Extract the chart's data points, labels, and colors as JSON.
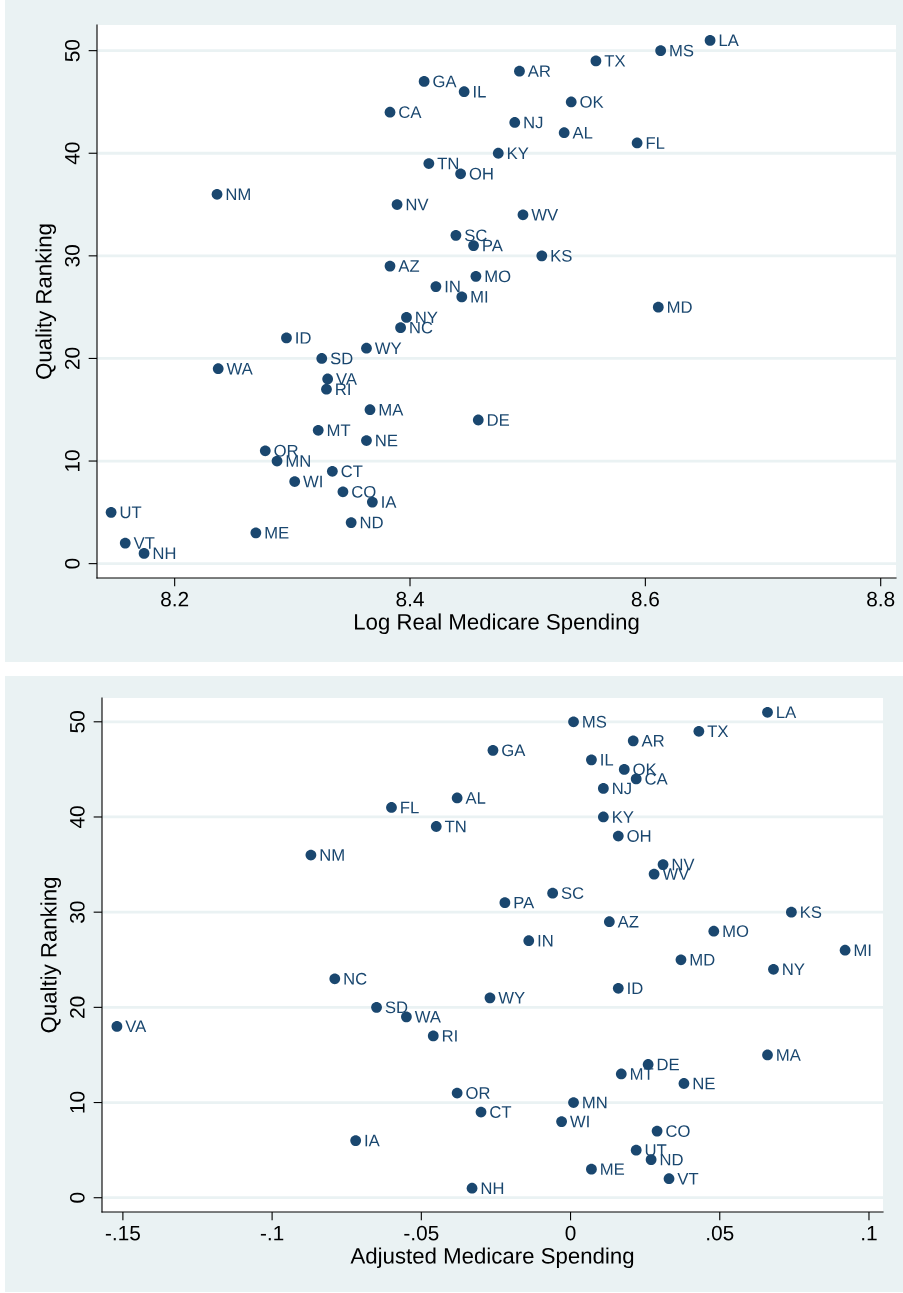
{
  "chart_data": [
    {
      "type": "scatter",
      "xlabel": "Log Real Medicare Spending",
      "ylabel": "Quality Ranking",
      "marker": "circle",
      "grid": "y",
      "xlim": [
        8.134,
        8.813
      ],
      "xticks": [
        8.2,
        8.4,
        8.6,
        8.8
      ],
      "ylim": [
        -1.4,
        52.5
      ],
      "yticks": [
        0,
        10,
        20,
        30,
        40,
        50
      ],
      "series": [
        {
          "color": "#1a476f",
          "x": [
            8.655,
            8.613,
            8.558,
            8.493,
            8.412,
            8.446,
            8.537,
            8.383,
            8.489,
            8.531,
            8.593,
            8.475,
            8.416,
            8.443,
            8.236,
            8.389,
            8.496,
            8.439,
            8.454,
            8.512,
            8.383,
            8.456,
            8.422,
            8.444,
            8.611,
            8.397,
            8.392,
            8.295,
            8.363,
            8.325,
            8.237,
            8.33,
            8.329,
            8.366,
            8.458,
            8.322,
            8.363,
            8.277,
            8.287,
            8.334,
            8.302,
            8.343,
            8.368,
            8.146,
            8.35,
            8.269,
            8.158,
            8.174
          ],
          "values": [
            51,
            50,
            49,
            48,
            47,
            46,
            45,
            44,
            43,
            42,
            41,
            40,
            39,
            38,
            36,
            35,
            34,
            32,
            31,
            30,
            29,
            28,
            27,
            26,
            25,
            24,
            23,
            22,
            21,
            20,
            19,
            18,
            17,
            15,
            14,
            13,
            12,
            11,
            10,
            9,
            8,
            7,
            6,
            5,
            4,
            3,
            2,
            1
          ]
        }
      ],
      "annotations": [
        {
          "text": "LA",
          "x": 8.655,
          "y": 51
        },
        {
          "text": "MS",
          "x": 8.613,
          "y": 50
        },
        {
          "text": "TX",
          "x": 8.558,
          "y": 49
        },
        {
          "text": "AR",
          "x": 8.493,
          "y": 48
        },
        {
          "text": "GA",
          "x": 8.412,
          "y": 47
        },
        {
          "text": "IL",
          "x": 8.446,
          "y": 46
        },
        {
          "text": "OK",
          "x": 8.537,
          "y": 45
        },
        {
          "text": "CA",
          "x": 8.383,
          "y": 44
        },
        {
          "text": "NJ",
          "x": 8.489,
          "y": 43
        },
        {
          "text": "AL",
          "x": 8.531,
          "y": 42
        },
        {
          "text": "FL",
          "x": 8.593,
          "y": 41
        },
        {
          "text": "KY",
          "x": 8.475,
          "y": 40
        },
        {
          "text": "TN",
          "x": 8.416,
          "y": 39
        },
        {
          "text": "OH",
          "x": 8.443,
          "y": 38
        },
        {
          "text": "NM",
          "x": 8.236,
          "y": 36
        },
        {
          "text": "NV",
          "x": 8.389,
          "y": 35
        },
        {
          "text": "WV",
          "x": 8.496,
          "y": 34
        },
        {
          "text": "SC",
          "x": 8.439,
          "y": 32
        },
        {
          "text": "PA",
          "x": 8.454,
          "y": 31
        },
        {
          "text": "KS",
          "x": 8.512,
          "y": 30
        },
        {
          "text": "AZ",
          "x": 8.383,
          "y": 29
        },
        {
          "text": "MO",
          "x": 8.456,
          "y": 28
        },
        {
          "text": "IN",
          "x": 8.422,
          "y": 27
        },
        {
          "text": "MI",
          "x": 8.444,
          "y": 26
        },
        {
          "text": "MD",
          "x": 8.611,
          "y": 25
        },
        {
          "text": "NY",
          "x": 8.397,
          "y": 24
        },
        {
          "text": "NC",
          "x": 8.392,
          "y": 23
        },
        {
          "text": "ID",
          "x": 8.295,
          "y": 22
        },
        {
          "text": "WY",
          "x": 8.363,
          "y": 21
        },
        {
          "text": "SD",
          "x": 8.325,
          "y": 20
        },
        {
          "text": "WA",
          "x": 8.237,
          "y": 19
        },
        {
          "text": "VA",
          "x": 8.33,
          "y": 18
        },
        {
          "text": "RI",
          "x": 8.329,
          "y": 17
        },
        {
          "text": "MA",
          "x": 8.366,
          "y": 15
        },
        {
          "text": "DE",
          "x": 8.458,
          "y": 14
        },
        {
          "text": "MT",
          "x": 8.322,
          "y": 13
        },
        {
          "text": "NE",
          "x": 8.363,
          "y": 12
        },
        {
          "text": "OR",
          "x": 8.277,
          "y": 11
        },
        {
          "text": "MN",
          "x": 8.287,
          "y": 10
        },
        {
          "text": "CT",
          "x": 8.334,
          "y": 9
        },
        {
          "text": "WI",
          "x": 8.302,
          "y": 8
        },
        {
          "text": "CO",
          "x": 8.343,
          "y": 7
        },
        {
          "text": "IA",
          "x": 8.368,
          "y": 6
        },
        {
          "text": "UT",
          "x": 8.146,
          "y": 5
        },
        {
          "text": "ND",
          "x": 8.35,
          "y": 4
        },
        {
          "text": "ME",
          "x": 8.269,
          "y": 3
        },
        {
          "text": "VT",
          "x": 8.158,
          "y": 2
        },
        {
          "text": "NH",
          "x": 8.174,
          "y": 1
        }
      ]
    },
    {
      "type": "scatter",
      "xlabel": "Adjusted Medicare Spending",
      "ylabel": "Qualtiy Ranking",
      "marker": "circle",
      "grid": "y",
      "xlim": [
        -0.157,
        0.1047
      ],
      "xticks": [
        {
          "value": -0.15,
          "label": "-.15"
        },
        {
          "value": -0.1,
          "label": "-.1"
        },
        {
          "value": -0.05,
          "label": "-.05"
        },
        0,
        {
          "value": 0.05,
          "label": ".05"
        },
        {
          "value": 0.1,
          "label": ".1"
        }
      ],
      "ylim": [
        -1.5,
        52.5
      ],
      "yticks": [
        0,
        10,
        20,
        30,
        40,
        50
      ],
      "series": [
        {
          "color": "#1a476f",
          "x": [
            0.066,
            0.001,
            0.043,
            0.021,
            -0.026,
            0.007,
            0.018,
            0.022,
            0.011,
            -0.038,
            -0.06,
            0.011,
            -0.045,
            0.016,
            -0.087,
            0.031,
            0.028,
            -0.006,
            -0.022,
            0.074,
            0.013,
            0.048,
            -0.014,
            0.092,
            0.037,
            0.068,
            -0.079,
            0.016,
            -0.027,
            -0.065,
            -0.055,
            -0.152,
            -0.046,
            0.066,
            0.026,
            0.017,
            0.038,
            -0.038,
            0.001,
            -0.03,
            -0.003,
            0.029,
            -0.072,
            0.022,
            0.027,
            0.007,
            0.033,
            -0.033
          ],
          "values": [
            51,
            50,
            49,
            48,
            47,
            46,
            45,
            44,
            43,
            42,
            41,
            40,
            39,
            38,
            36,
            35,
            34,
            32,
            31,
            30,
            29,
            28,
            27,
            26,
            25,
            24,
            23,
            22,
            21,
            20,
            19,
            18,
            17,
            15,
            14,
            13,
            12,
            11,
            10,
            9,
            8,
            7,
            6,
            5,
            4,
            3,
            2,
            1
          ]
        }
      ],
      "annotations": [
        {
          "text": "LA",
          "x": 0.066,
          "y": 51
        },
        {
          "text": "MS",
          "x": 0.001,
          "y": 50
        },
        {
          "text": "TX",
          "x": 0.043,
          "y": 49
        },
        {
          "text": "AR",
          "x": 0.021,
          "y": 48
        },
        {
          "text": "GA",
          "x": -0.026,
          "y": 47
        },
        {
          "text": "IL",
          "x": 0.007,
          "y": 46
        },
        {
          "text": "OK",
          "x": 0.018,
          "y": 45
        },
        {
          "text": "CA",
          "x": 0.022,
          "y": 44
        },
        {
          "text": "NJ",
          "x": 0.011,
          "y": 43
        },
        {
          "text": "AL",
          "x": -0.038,
          "y": 42
        },
        {
          "text": "FL",
          "x": -0.06,
          "y": 41
        },
        {
          "text": "KY",
          "x": 0.011,
          "y": 40
        },
        {
          "text": "TN",
          "x": -0.045,
          "y": 39
        },
        {
          "text": "OH",
          "x": 0.016,
          "y": 38
        },
        {
          "text": "NM",
          "x": -0.087,
          "y": 36
        },
        {
          "text": "NV",
          "x": 0.031,
          "y": 35
        },
        {
          "text": "WV",
          "x": 0.028,
          "y": 34
        },
        {
          "text": "SC",
          "x": -0.006,
          "y": 32
        },
        {
          "text": "PA",
          "x": -0.022,
          "y": 31
        },
        {
          "text": "KS",
          "x": 0.074,
          "y": 30
        },
        {
          "text": "AZ",
          "x": 0.013,
          "y": 29
        },
        {
          "text": "MO",
          "x": 0.048,
          "y": 28
        },
        {
          "text": "IN",
          "x": -0.014,
          "y": 27
        },
        {
          "text": "MI",
          "x": 0.092,
          "y": 26
        },
        {
          "text": "MD",
          "x": 0.037,
          "y": 25
        },
        {
          "text": "NY",
          "x": 0.068,
          "y": 24
        },
        {
          "text": "NC",
          "x": -0.079,
          "y": 23
        },
        {
          "text": "ID",
          "x": 0.016,
          "y": 22
        },
        {
          "text": "WY",
          "x": -0.027,
          "y": 21
        },
        {
          "text": "SD",
          "x": -0.065,
          "y": 20
        },
        {
          "text": "WA",
          "x": -0.055,
          "y": 19
        },
        {
          "text": "VA",
          "x": -0.152,
          "y": 18
        },
        {
          "text": "RI",
          "x": -0.046,
          "y": 17
        },
        {
          "text": "MA",
          "x": 0.066,
          "y": 15
        },
        {
          "text": "DE",
          "x": 0.026,
          "y": 14
        },
        {
          "text": "MT",
          "x": 0.017,
          "y": 13
        },
        {
          "text": "NE",
          "x": 0.038,
          "y": 12
        },
        {
          "text": "OR",
          "x": -0.038,
          "y": 11
        },
        {
          "text": "MN",
          "x": 0.001,
          "y": 10
        },
        {
          "text": "CT",
          "x": -0.03,
          "y": 9
        },
        {
          "text": "WI",
          "x": -0.003,
          "y": 8
        },
        {
          "text": "CO",
          "x": 0.029,
          "y": 7
        },
        {
          "text": "IA",
          "x": -0.072,
          "y": 6
        },
        {
          "text": "UT",
          "x": 0.022,
          "y": 5
        },
        {
          "text": "ND",
          "x": 0.027,
          "y": 4
        },
        {
          "text": "ME",
          "x": 0.007,
          "y": 3
        },
        {
          "text": "VT",
          "x": 0.033,
          "y": 2
        },
        {
          "text": "NH",
          "x": -0.033,
          "y": 1
        }
      ]
    }
  ]
}
